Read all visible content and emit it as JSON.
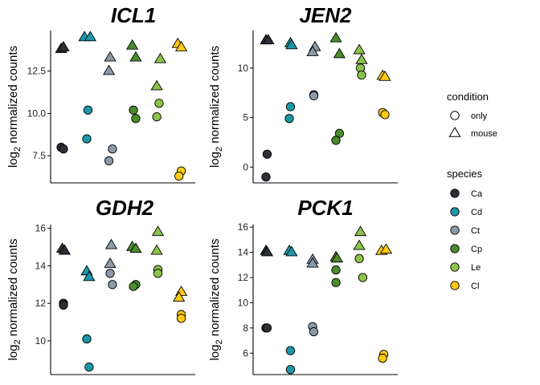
{
  "species_colors": {
    "Ca": "#2b2f36",
    "Cd": "#1b97a8",
    "Ct": "#8a9aa8",
    "Cp": "#4a8b2c",
    "Le": "#8bc34a",
    "Cl": "#ffc914"
  },
  "legend": {
    "condition": {
      "title": "condition",
      "items": [
        {
          "label": "only",
          "shape": "circle"
        },
        {
          "label": "mouse",
          "shape": "triangle"
        }
      ]
    },
    "species": {
      "title": "species",
      "items": [
        "Ca",
        "Cd",
        "Ct",
        "Cp",
        "Le",
        "Cl"
      ]
    }
  },
  "chart_data": [
    {
      "type": "scatter",
      "title": "ICL1",
      "ylabel": "log2 normalized counts",
      "ylim": [
        5.9,
        14.9
      ],
      "yticks": [
        7.5,
        10.0,
        12.5
      ],
      "ytick_labels": [
        "7.5",
        "10.0",
        "12.5"
      ],
      "points": [
        {
          "species": "Ca",
          "condition": "mouse",
          "x": 0.85,
          "y": 13.8
        },
        {
          "species": "Ca",
          "condition": "mouse",
          "x": 0.95,
          "y": 13.9
        },
        {
          "species": "Ca",
          "condition": "only",
          "x": 0.85,
          "y": 8.0
        },
        {
          "species": "Ca",
          "condition": "only",
          "x": 0.95,
          "y": 7.9
        },
        {
          "species": "Cd",
          "condition": "mouse",
          "x": 1.85,
          "y": 14.5
        },
        {
          "species": "Cd",
          "condition": "mouse",
          "x": 2.1,
          "y": 14.5
        },
        {
          "species": "Cd",
          "condition": "only",
          "x": 2.0,
          "y": 10.2
        },
        {
          "species": "Cd",
          "condition": "only",
          "x": 1.95,
          "y": 8.5
        },
        {
          "species": "Ct",
          "condition": "mouse",
          "x": 2.95,
          "y": 13.3
        },
        {
          "species": "Ct",
          "condition": "mouse",
          "x": 2.9,
          "y": 12.5
        },
        {
          "species": "Ct",
          "condition": "only",
          "x": 3.05,
          "y": 7.9
        },
        {
          "species": "Ct",
          "condition": "only",
          "x": 2.9,
          "y": 7.2
        },
        {
          "species": "Cp",
          "condition": "mouse",
          "x": 3.9,
          "y": 14.0
        },
        {
          "species": "Cp",
          "condition": "mouse",
          "x": 4.05,
          "y": 13.3
        },
        {
          "species": "Cp",
          "condition": "only",
          "x": 3.95,
          "y": 10.2
        },
        {
          "species": "Cp",
          "condition": "only",
          "x": 4.05,
          "y": 9.7
        },
        {
          "species": "Le",
          "condition": "mouse",
          "x": 5.1,
          "y": 13.2
        },
        {
          "species": "Le",
          "condition": "mouse",
          "x": 4.95,
          "y": 11.6
        },
        {
          "species": "Le",
          "condition": "only",
          "x": 5.05,
          "y": 10.6
        },
        {
          "species": "Le",
          "condition": "only",
          "x": 4.95,
          "y": 9.8
        },
        {
          "species": "Cl",
          "condition": "mouse",
          "x": 5.85,
          "y": 14.1
        },
        {
          "species": "Cl",
          "condition": "mouse",
          "x": 6.0,
          "y": 13.9
        },
        {
          "species": "Cl",
          "condition": "only",
          "x": 6.0,
          "y": 6.6
        },
        {
          "species": "Cl",
          "condition": "only",
          "x": 5.9,
          "y": 6.3
        }
      ]
    },
    {
      "type": "scatter",
      "title": "JEN2",
      "ylabel": "log2 normalized counts",
      "ylim": [
        -1.6,
        13.8
      ],
      "yticks": [
        0,
        5,
        10
      ],
      "ytick_labels": [
        "0",
        "5",
        "10"
      ],
      "points": [
        {
          "species": "Ca",
          "condition": "mouse",
          "x": 0.95,
          "y": 12.8
        },
        {
          "species": "Ca",
          "condition": "mouse",
          "x": 1.05,
          "y": 12.8
        },
        {
          "species": "Ca",
          "condition": "only",
          "x": 1.0,
          "y": 1.3
        },
        {
          "species": "Ca",
          "condition": "only",
          "x": 0.95,
          "y": -1.0
        },
        {
          "species": "Cd",
          "condition": "mouse",
          "x": 2.0,
          "y": 12.5
        },
        {
          "species": "Cd",
          "condition": "mouse",
          "x": 2.05,
          "y": 12.3
        },
        {
          "species": "Cd",
          "condition": "only",
          "x": 2.0,
          "y": 6.1
        },
        {
          "species": "Cd",
          "condition": "only",
          "x": 1.95,
          "y": 4.9
        },
        {
          "species": "Ct",
          "condition": "mouse",
          "x": 3.05,
          "y": 12.1
        },
        {
          "species": "Ct",
          "condition": "mouse",
          "x": 2.95,
          "y": 11.6
        },
        {
          "species": "Ct",
          "condition": "only",
          "x": 3.0,
          "y": 7.3
        },
        {
          "species": "Ct",
          "condition": "only",
          "x": 3.0,
          "y": 7.2
        },
        {
          "species": "Cp",
          "condition": "mouse",
          "x": 3.95,
          "y": 13.0
        },
        {
          "species": "Cp",
          "condition": "mouse",
          "x": 4.1,
          "y": 11.4
        },
        {
          "species": "Cp",
          "condition": "only",
          "x": 4.1,
          "y": 3.4
        },
        {
          "species": "Cp",
          "condition": "only",
          "x": 3.95,
          "y": 2.7
        },
        {
          "species": "Le",
          "condition": "mouse",
          "x": 4.95,
          "y": 11.8
        },
        {
          "species": "Le",
          "condition": "mouse",
          "x": 5.05,
          "y": 10.8
        },
        {
          "species": "Le",
          "condition": "only",
          "x": 5.0,
          "y": 10.0
        },
        {
          "species": "Le",
          "condition": "only",
          "x": 5.05,
          "y": 9.3
        },
        {
          "species": "Cl",
          "condition": "mouse",
          "x": 5.95,
          "y": 9.2
        },
        {
          "species": "Cl",
          "condition": "mouse",
          "x": 6.05,
          "y": 9.1
        },
        {
          "species": "Cl",
          "condition": "only",
          "x": 5.95,
          "y": 5.5
        },
        {
          "species": "Cl",
          "condition": "only",
          "x": 6.05,
          "y": 5.3
        }
      ]
    },
    {
      "type": "scatter",
      "title": "GDH2",
      "ylabel": "log2 normalized counts",
      "ylim": [
        8.2,
        16.2
      ],
      "yticks": [
        10,
        12,
        14,
        16
      ],
      "ytick_labels": [
        "10",
        "12",
        "14",
        "16"
      ],
      "points": [
        {
          "species": "Ca",
          "condition": "mouse",
          "x": 0.9,
          "y": 14.9
        },
        {
          "species": "Ca",
          "condition": "mouse",
          "x": 1.0,
          "y": 14.8
        },
        {
          "species": "Ca",
          "condition": "only",
          "x": 0.95,
          "y": 12.0
        },
        {
          "species": "Ca",
          "condition": "only",
          "x": 0.95,
          "y": 11.9
        },
        {
          "species": "Cd",
          "condition": "mouse",
          "x": 1.95,
          "y": 13.7
        },
        {
          "species": "Cd",
          "condition": "mouse",
          "x": 2.05,
          "y": 13.4
        },
        {
          "species": "Cd",
          "condition": "only",
          "x": 1.95,
          "y": 10.1
        },
        {
          "species": "Cd",
          "condition": "only",
          "x": 2.05,
          "y": 8.6
        },
        {
          "species": "Ct",
          "condition": "mouse",
          "x": 3.0,
          "y": 15.1
        },
        {
          "species": "Ct",
          "condition": "mouse",
          "x": 2.95,
          "y": 14.1
        },
        {
          "species": "Ct",
          "condition": "only",
          "x": 2.95,
          "y": 13.6
        },
        {
          "species": "Ct",
          "condition": "only",
          "x": 3.05,
          "y": 13.0
        },
        {
          "species": "Cp",
          "condition": "mouse",
          "x": 3.9,
          "y": 15.0
        },
        {
          "species": "Cp",
          "condition": "mouse",
          "x": 4.05,
          "y": 14.9
        },
        {
          "species": "Cp",
          "condition": "only",
          "x": 4.05,
          "y": 13.0
        },
        {
          "species": "Cp",
          "condition": "only",
          "x": 3.95,
          "y": 12.9
        },
        {
          "species": "Le",
          "condition": "mouse",
          "x": 5.0,
          "y": 15.8
        },
        {
          "species": "Le",
          "condition": "mouse",
          "x": 4.95,
          "y": 14.8
        },
        {
          "species": "Le",
          "condition": "only",
          "x": 5.0,
          "y": 13.8
        },
        {
          "species": "Le",
          "condition": "only",
          "x": 5.0,
          "y": 13.6
        },
        {
          "species": "Cl",
          "condition": "mouse",
          "x": 6.0,
          "y": 12.6
        },
        {
          "species": "Cl",
          "condition": "mouse",
          "x": 5.9,
          "y": 12.3
        },
        {
          "species": "Cl",
          "condition": "only",
          "x": 6.0,
          "y": 11.4
        },
        {
          "species": "Cl",
          "condition": "only",
          "x": 6.0,
          "y": 11.2
        }
      ]
    },
    {
      "type": "scatter",
      "title": "PCK1",
      "ylabel": "log2 normalized counts",
      "ylim": [
        4.3,
        16.2
      ],
      "yticks": [
        6,
        8,
        10,
        12,
        14,
        16
      ],
      "ytick_labels": [
        "6",
        "8",
        "10",
        "12",
        "14",
        "16"
      ],
      "points": [
        {
          "species": "Ca",
          "condition": "mouse",
          "x": 0.95,
          "y": 14.1
        },
        {
          "species": "Ca",
          "condition": "mouse",
          "x": 1.0,
          "y": 14.0
        },
        {
          "species": "Ca",
          "condition": "only",
          "x": 0.95,
          "y": 8.0
        },
        {
          "species": "Ca",
          "condition": "only",
          "x": 1.0,
          "y": 8.0
        },
        {
          "species": "Cd",
          "condition": "mouse",
          "x": 1.95,
          "y": 14.1
        },
        {
          "species": "Cd",
          "condition": "mouse",
          "x": 2.05,
          "y": 14.0
        },
        {
          "species": "Cd",
          "condition": "only",
          "x": 2.0,
          "y": 6.2
        },
        {
          "species": "Cd",
          "condition": "only",
          "x": 2.0,
          "y": 4.7
        },
        {
          "species": "Ct",
          "condition": "mouse",
          "x": 2.95,
          "y": 13.4
        },
        {
          "species": "Ct",
          "condition": "mouse",
          "x": 2.95,
          "y": 13.1
        },
        {
          "species": "Ct",
          "condition": "only",
          "x": 2.95,
          "y": 8.1
        },
        {
          "species": "Ct",
          "condition": "only",
          "x": 3.0,
          "y": 7.7
        },
        {
          "species": "Cp",
          "condition": "mouse",
          "x": 3.95,
          "y": 13.6
        },
        {
          "species": "Cp",
          "condition": "mouse",
          "x": 4.0,
          "y": 13.5
        },
        {
          "species": "Cp",
          "condition": "only",
          "x": 3.95,
          "y": 12.6
        },
        {
          "species": "Cp",
          "condition": "only",
          "x": 3.95,
          "y": 11.6
        },
        {
          "species": "Le",
          "condition": "mouse",
          "x": 5.0,
          "y": 15.6
        },
        {
          "species": "Le",
          "condition": "mouse",
          "x": 4.95,
          "y": 14.5
        },
        {
          "species": "Le",
          "condition": "only",
          "x": 4.95,
          "y": 13.5
        },
        {
          "species": "Le",
          "condition": "only",
          "x": 5.1,
          "y": 12.0
        },
        {
          "species": "Cl",
          "condition": "mouse",
          "x": 5.9,
          "y": 14.1
        },
        {
          "species": "Cl",
          "condition": "mouse",
          "x": 6.1,
          "y": 14.2
        },
        {
          "species": "Cl",
          "condition": "only",
          "x": 6.0,
          "y": 5.9
        },
        {
          "species": "Cl",
          "condition": "only",
          "x": 5.95,
          "y": 5.6
        }
      ]
    }
  ]
}
